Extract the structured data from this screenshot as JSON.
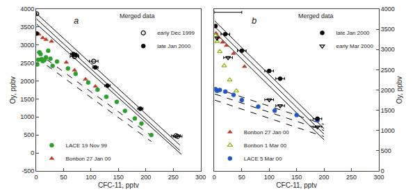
{
  "chart_data": [
    {
      "type": "scatter",
      "title": "a",
      "xlabel": "CFC-11, pptv",
      "ylabel": "Oy, ppbv",
      "xlim": [
        0,
        300
      ],
      "ylim": [
        -500,
        4000
      ],
      "xticks": [
        0,
        50,
        100,
        150,
        200,
        250,
        300
      ],
      "yticks": [
        -500,
        0,
        500,
        1000,
        1500,
        2000,
        2500,
        3000,
        3500,
        4000
      ],
      "grid": false,
      "annotations": [
        {
          "text": "Merged data"
        }
      ],
      "series": [
        {
          "type": "line",
          "line_style": "solid",
          "color": "black",
          "x": [
            1,
            262
          ],
          "values": [
            3870,
            220
          ]
        },
        {
          "type": "line",
          "line_style": "solid",
          "color": "black",
          "x": [
            1,
            262
          ],
          "values": [
            3720,
            70
          ]
        },
        {
          "type": "line",
          "line_style": "solid",
          "color": "black",
          "x": [
            1,
            265
          ],
          "values": [
            3580,
            -40
          ]
        },
        {
          "type": "line",
          "line_style": "dashed",
          "color": "black",
          "x": [
            1,
            210
          ],
          "values": [
            2800,
            480
          ]
        },
        {
          "type": "line",
          "line_style": "dashed",
          "color": "black",
          "x": [
            1,
            210
          ],
          "values": [
            2640,
            320
          ]
        },
        {
          "type": "scatter",
          "name": "LACE 19 Nov 99",
          "color": "#2ca02c",
          "marker": "circle",
          "legend": "lower left",
          "x": [
            2,
            4,
            6,
            8,
            10,
            12,
            15,
            18,
            22,
            26,
            30,
            38,
            58,
            72,
            95,
            112,
            128,
            147,
            162,
            180,
            192,
            210
          ],
          "values": [
            2460,
            2590,
            2800,
            2750,
            2610,
            2550,
            2580,
            2660,
            2840,
            2620,
            2420,
            2540,
            2350,
            2200,
            1960,
            1760,
            1560,
            1420,
            1170,
            960,
            820,
            500
          ]
        },
        {
          "type": "scatter",
          "name": "Bonbon 27 Jan 00",
          "color": "#c0392b",
          "marker": "triangle-up",
          "legend": "lower left",
          "x": [
            5,
            12,
            18,
            28,
            55,
            70,
            90,
            108
          ],
          "values": [
            3300,
            3200,
            3150,
            3100,
            2520,
            2300,
            2050,
            1850
          ]
        },
        {
          "type": "scatter",
          "name": "early Dec 1999",
          "color": "black",
          "marker": "circle-open",
          "legend": "upper right",
          "x": [
            1,
            70,
            105,
            255,
            258
          ],
          "values": [
            3870,
            2680,
            2550,
            480,
            460
          ],
          "xerr": [
            0,
            8,
            8,
            8,
            8
          ]
        },
        {
          "type": "scatter",
          "name": "late Jan 2000",
          "color": "black",
          "marker": "circle",
          "legend": "upper right",
          "x": [
            1,
            68,
            72,
            108,
            130,
            190
          ],
          "values": [
            3320,
            2750,
            2720,
            2380,
            1870,
            1230
          ],
          "xerr": [
            0,
            5,
            5,
            5,
            5,
            5
          ]
        }
      ]
    },
    {
      "type": "scatter",
      "title": "b",
      "xlabel": "CFC-11, pptv",
      "ylabel": "Oy, ppbv",
      "xlim": [
        0,
        300
      ],
      "ylim": [
        0,
        4000
      ],
      "xticks": [
        0,
        50,
        100,
        150,
        200,
        250,
        300
      ],
      "yticks": [
        0,
        500,
        1000,
        1500,
        2000,
        2500,
        3000,
        3500,
        4000
      ],
      "grid": false,
      "annotations": [
        {
          "text": "Merged data"
        }
      ],
      "series": [
        {
          "type": "line",
          "line_style": "solid",
          "color": "black",
          "x": [
            1,
            200
          ],
          "values": [
            3700,
            1050
          ]
        },
        {
          "type": "line",
          "line_style": "solid",
          "color": "black",
          "x": [
            1,
            200
          ],
          "values": [
            3560,
            910
          ]
        },
        {
          "type": "line",
          "line_style": "solid",
          "color": "black",
          "x": [
            1,
            200
          ],
          "values": [
            3420,
            770
          ]
        },
        {
          "type": "line",
          "line_style": "dashed",
          "color": "black",
          "x": [
            1,
            200
          ],
          "values": [
            2050,
            1150
          ]
        },
        {
          "type": "line",
          "line_style": "dashed",
          "color": "black",
          "x": [
            1,
            200
          ],
          "values": [
            1900,
            1000
          ]
        },
        {
          "type": "line",
          "line_style": "dashed",
          "color": "black",
          "x": [
            1,
            200
          ],
          "values": [
            1750,
            850
          ]
        },
        {
          "type": "scatter",
          "name": "Bonbon 27 Jan 00",
          "color": "#c0392b",
          "marker": "triangle-up",
          "legend": "lower left",
          "x": [
            3,
            8,
            15,
            22,
            35,
            55
          ],
          "values": [
            3400,
            3300,
            3180,
            3100,
            2900,
            2580
          ]
        },
        {
          "type": "scatter",
          "name": "Bonbon 1 Mar 00",
          "color": "#8db300",
          "marker": "triangle-up-open",
          "legend": "lower left",
          "x": [
            2,
            5,
            10,
            18,
            28,
            40
          ],
          "values": [
            3350,
            3200,
            2950,
            2600,
            2250,
            1980
          ]
        },
        {
          "type": "scatter",
          "name": "LACE 5 Mar 00",
          "color": "#2255cc",
          "marker": "circle",
          "legend": "lower left",
          "x": [
            2,
            5,
            10,
            20,
            35,
            50,
            80,
            110,
            150,
            188
          ],
          "values": [
            2020,
            1980,
            2000,
            1960,
            1880,
            1750,
            1590,
            1490,
            1380,
            1250
          ]
        },
        {
          "type": "scatter",
          "name": "late Jan 2000",
          "color": "black",
          "marker": "circle",
          "legend": "upper right",
          "x": [
            2,
            20,
            50,
            100,
            120,
            188
          ],
          "values": [
            3580,
            3380,
            2970,
            2470,
            2280,
            1290
          ],
          "xerr": [
            0,
            8,
            8,
            8,
            8,
            8
          ]
        },
        {
          "type": "scatter",
          "name": "early Mar 2000",
          "color": "black",
          "marker": "triangle-down-open",
          "legend": "upper right",
          "x": [
            5,
            25,
            100,
            120,
            188
          ],
          "values": [
            3280,
            2800,
            1760,
            1610,
            1090
          ],
          "xerr": [
            0,
            8,
            8,
            8,
            8
          ]
        },
        {
          "type": "errorbar",
          "color": "black",
          "marker": "none",
          "x": [
            5
          ],
          "values": [
            3920
          ],
          "xerr_minus": [
            5
          ],
          "xerr_plus": [
            45
          ]
        }
      ]
    }
  ]
}
